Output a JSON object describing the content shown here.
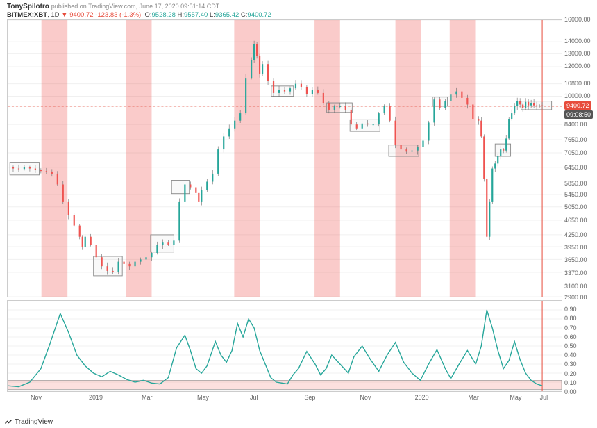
{
  "header": {
    "author": "TonySpilotro",
    "publish_text": "published on TradingView.com, June 17, 2020 09:51:14 CDT"
  },
  "ohlc": {
    "symbol": "BITMEX:XBT",
    "timeframe": "1D",
    "last": "9400.72",
    "change": "-123.83",
    "change_pct": "(-1.3%)",
    "o_label": "O:",
    "o": "9528.28",
    "h_label": "H:",
    "h": "9557.40",
    "l_label": "L:",
    "l": "9365.42",
    "c_label": "C:",
    "c": "9400.72"
  },
  "main_chart": {
    "type": "candlestick",
    "ylim": [
      2900,
      16000
    ],
    "yticks": [
      16000,
      14000,
      13000,
      12000,
      10800,
      10000,
      9400.72,
      8400,
      7650,
      7050,
      6450,
      5850,
      5450,
      5050,
      4650,
      4250,
      3950,
      3650,
      3370,
      3100,
      2900
    ],
    "ytick_labels": [
      "16000.00",
      "14000.00",
      "13000.00",
      "12000.00",
      "10800.00",
      "10000.00",
      "9400.72",
      "8400.00",
      "7650.00",
      "7050.00",
      "6450.00",
      "5850.00",
      "5450.00",
      "5050.00",
      "4650.00",
      "4250.00",
      "3950.00",
      "3650.00",
      "3370.00",
      "3100.00",
      "2900.00"
    ],
    "price_line": 9400.72,
    "countdown": "09:08:50",
    "vertical_cursor_x": 0.965,
    "highlight_bands_x": [
      [
        0.061,
        0.108
      ],
      [
        0.214,
        0.26
      ],
      [
        0.409,
        0.455
      ],
      [
        0.554,
        0.6
      ],
      [
        0.7,
        0.746
      ],
      [
        0.798,
        0.844
      ]
    ],
    "boxes": [
      {
        "x": [
          0.004,
          0.057
        ],
        "y": [
          6150,
          6650
        ]
      },
      {
        "x": [
          0.155,
          0.207
        ],
        "y": [
          3300,
          3720
        ]
      },
      {
        "x": [
          0.258,
          0.3
        ],
        "y": [
          3820,
          4250
        ]
      },
      {
        "x": [
          0.296,
          0.328
        ],
        "y": [
          5480,
          5950
        ]
      },
      {
        "x": [
          0.476,
          0.516
        ],
        "y": [
          10000,
          10650
        ]
      },
      {
        "x": [
          0.576,
          0.622
        ],
        "y": [
          9050,
          9600
        ]
      },
      {
        "x": [
          0.618,
          0.672
        ],
        "y": [
          8050,
          8650
        ]
      },
      {
        "x": [
          0.688,
          0.742
        ],
        "y": [
          6900,
          7400
        ]
      },
      {
        "x": [
          0.767,
          0.794
        ],
        "y": [
          9400,
          9950
        ]
      },
      {
        "x": [
          0.88,
          0.908
        ],
        "y": [
          6900,
          7450
        ]
      },
      {
        "x": [
          0.927,
          0.982
        ],
        "y": [
          9200,
          9700
        ]
      }
    ],
    "price_series": [
      [
        0.0,
        6450
      ],
      [
        0.01,
        6400
      ],
      [
        0.02,
        6380
      ],
      [
        0.03,
        6450
      ],
      [
        0.04,
        6400
      ],
      [
        0.05,
        6350
      ],
      [
        0.06,
        6300
      ],
      [
        0.07,
        6280
      ],
      [
        0.08,
        6200
      ],
      [
        0.09,
        5800
      ],
      [
        0.1,
        5200
      ],
      [
        0.11,
        4800
      ],
      [
        0.12,
        4500
      ],
      [
        0.13,
        4200
      ],
      [
        0.135,
        3950
      ],
      [
        0.14,
        4200
      ],
      [
        0.15,
        4000
      ],
      [
        0.16,
        3700
      ],
      [
        0.17,
        3500
      ],
      [
        0.18,
        3400
      ],
      [
        0.19,
        3380
      ],
      [
        0.2,
        3600
      ],
      [
        0.21,
        3550
      ],
      [
        0.22,
        3500
      ],
      [
        0.23,
        3600
      ],
      [
        0.24,
        3650
      ],
      [
        0.25,
        3700
      ],
      [
        0.26,
        3800
      ],
      [
        0.27,
        4000
      ],
      [
        0.28,
        4050
      ],
      [
        0.29,
        4000
      ],
      [
        0.3,
        4100
      ],
      [
        0.31,
        5200
      ],
      [
        0.32,
        5800
      ],
      [
        0.33,
        5700
      ],
      [
        0.34,
        5500
      ],
      [
        0.345,
        5200
      ],
      [
        0.35,
        5600
      ],
      [
        0.36,
        5900
      ],
      [
        0.37,
        6200
      ],
      [
        0.38,
        7200
      ],
      [
        0.39,
        7800
      ],
      [
        0.4,
        8200
      ],
      [
        0.41,
        8600
      ],
      [
        0.42,
        9000
      ],
      [
        0.43,
        11200
      ],
      [
        0.44,
        12500
      ],
      [
        0.445,
        13800
      ],
      [
        0.45,
        12800
      ],
      [
        0.455,
        11500
      ],
      [
        0.46,
        12200
      ],
      [
        0.47,
        11000
      ],
      [
        0.48,
        10200
      ],
      [
        0.49,
        10400
      ],
      [
        0.5,
        10300
      ],
      [
        0.51,
        10500
      ],
      [
        0.52,
        10800
      ],
      [
        0.53,
        10600
      ],
      [
        0.54,
        10150
      ],
      [
        0.55,
        10400
      ],
      [
        0.56,
        10200
      ],
      [
        0.57,
        9600
      ],
      [
        0.58,
        9200
      ],
      [
        0.59,
        9400
      ],
      [
        0.6,
        9400
      ],
      [
        0.61,
        9200
      ],
      [
        0.62,
        8400
      ],
      [
        0.63,
        8200
      ],
      [
        0.64,
        8450
      ],
      [
        0.65,
        8400
      ],
      [
        0.66,
        8400
      ],
      [
        0.67,
        9000
      ],
      [
        0.68,
        9400
      ],
      [
        0.69,
        8600
      ],
      [
        0.7,
        7400
      ],
      [
        0.71,
        7200
      ],
      [
        0.72,
        7100
      ],
      [
        0.73,
        7150
      ],
      [
        0.74,
        7300
      ],
      [
        0.75,
        7600
      ],
      [
        0.76,
        8500
      ],
      [
        0.77,
        9800
      ],
      [
        0.78,
        9300
      ],
      [
        0.79,
        9700
      ],
      [
        0.8,
        10100
      ],
      [
        0.81,
        10300
      ],
      [
        0.82,
        9900
      ],
      [
        0.83,
        9500
      ],
      [
        0.84,
        8700
      ],
      [
        0.85,
        8600
      ],
      [
        0.855,
        7800
      ],
      [
        0.86,
        6000
      ],
      [
        0.865,
        4200
      ],
      [
        0.87,
        5200
      ],
      [
        0.875,
        6400
      ],
      [
        0.88,
        6600
      ],
      [
        0.885,
        6900
      ],
      [
        0.89,
        7200
      ],
      [
        0.895,
        7150
      ],
      [
        0.9,
        7700
      ],
      [
        0.905,
        8700
      ],
      [
        0.91,
        9000
      ],
      [
        0.915,
        9400
      ],
      [
        0.92,
        9700
      ],
      [
        0.925,
        9500
      ],
      [
        0.93,
        9300
      ],
      [
        0.935,
        9650
      ],
      [
        0.94,
        9450
      ],
      [
        0.945,
        9600
      ],
      [
        0.95,
        9450
      ],
      [
        0.955,
        9400
      ],
      [
        0.96,
        9450
      ],
      [
        0.965,
        9400
      ]
    ],
    "colors": {
      "up": "#26a69a",
      "down": "#ef5350",
      "wick": "#666666",
      "background": "#ffffff",
      "grid": "#f0f0f0"
    }
  },
  "indicator_chart": {
    "type": "line",
    "ylim": [
      0.0,
      1.0
    ],
    "yticks": [
      0.9,
      0.8,
      0.7,
      0.6,
      0.5,
      0.4,
      0.3,
      0.2,
      0.1,
      0.0
    ],
    "ytick_labels": [
      "0.90",
      "0.80",
      "0.70",
      "0.60",
      "0.50",
      "0.40",
      "0.30",
      "0.20",
      "0.10",
      "0.00"
    ],
    "threshold_band": [
      0.02,
      0.12
    ],
    "series": [
      [
        0.0,
        0.06
      ],
      [
        0.02,
        0.05
      ],
      [
        0.04,
        0.1
      ],
      [
        0.06,
        0.25
      ],
      [
        0.075,
        0.5
      ],
      [
        0.095,
        0.86
      ],
      [
        0.11,
        0.65
      ],
      [
        0.125,
        0.4
      ],
      [
        0.14,
        0.28
      ],
      [
        0.155,
        0.2
      ],
      [
        0.17,
        0.16
      ],
      [
        0.185,
        0.22
      ],
      [
        0.2,
        0.18
      ],
      [
        0.215,
        0.13
      ],
      [
        0.23,
        0.1
      ],
      [
        0.245,
        0.12
      ],
      [
        0.26,
        0.09
      ],
      [
        0.275,
        0.08
      ],
      [
        0.29,
        0.15
      ],
      [
        0.305,
        0.48
      ],
      [
        0.32,
        0.62
      ],
      [
        0.33,
        0.45
      ],
      [
        0.34,
        0.25
      ],
      [
        0.35,
        0.2
      ],
      [
        0.36,
        0.28
      ],
      [
        0.375,
        0.55
      ],
      [
        0.385,
        0.4
      ],
      [
        0.395,
        0.32
      ],
      [
        0.405,
        0.45
      ],
      [
        0.415,
        0.75
      ],
      [
        0.425,
        0.6
      ],
      [
        0.435,
        0.8
      ],
      [
        0.445,
        0.7
      ],
      [
        0.455,
        0.45
      ],
      [
        0.465,
        0.3
      ],
      [
        0.475,
        0.15
      ],
      [
        0.485,
        0.1
      ],
      [
        0.495,
        0.09
      ],
      [
        0.505,
        0.08
      ],
      [
        0.515,
        0.18
      ],
      [
        0.525,
        0.25
      ],
      [
        0.54,
        0.44
      ],
      [
        0.555,
        0.3
      ],
      [
        0.565,
        0.18
      ],
      [
        0.575,
        0.25
      ],
      [
        0.585,
        0.4
      ],
      [
        0.6,
        0.3
      ],
      [
        0.615,
        0.2
      ],
      [
        0.625,
        0.38
      ],
      [
        0.64,
        0.5
      ],
      [
        0.655,
        0.35
      ],
      [
        0.67,
        0.22
      ],
      [
        0.685,
        0.4
      ],
      [
        0.7,
        0.54
      ],
      [
        0.715,
        0.32
      ],
      [
        0.73,
        0.2
      ],
      [
        0.745,
        0.12
      ],
      [
        0.76,
        0.3
      ],
      [
        0.775,
        0.46
      ],
      [
        0.79,
        0.25
      ],
      [
        0.8,
        0.14
      ],
      [
        0.815,
        0.3
      ],
      [
        0.83,
        0.45
      ],
      [
        0.845,
        0.3
      ],
      [
        0.855,
        0.5
      ],
      [
        0.865,
        0.9
      ],
      [
        0.875,
        0.7
      ],
      [
        0.885,
        0.45
      ],
      [
        0.895,
        0.25
      ],
      [
        0.905,
        0.34
      ],
      [
        0.915,
        0.55
      ],
      [
        0.925,
        0.35
      ],
      [
        0.935,
        0.2
      ],
      [
        0.945,
        0.12
      ],
      [
        0.955,
        0.08
      ],
      [
        0.965,
        0.06
      ]
    ],
    "color": "#26a69a",
    "threshold_color": "rgba(239,83,80,0.18)"
  },
  "xaxis": {
    "labels": [
      {
        "x": 0.055,
        "text": "Nov"
      },
      {
        "x": 0.16,
        "text": "2019"
      },
      {
        "x": 0.255,
        "text": "Mar"
      },
      {
        "x": 0.355,
        "text": "May"
      },
      {
        "x": 0.45,
        "text": "Jul"
      },
      {
        "x": 0.548,
        "text": "Sep"
      },
      {
        "x": 0.648,
        "text": "Nov"
      },
      {
        "x": 0.747,
        "text": "2020"
      },
      {
        "x": 0.843,
        "text": "Mar"
      },
      {
        "x": 0.918,
        "text": "May"
      },
      {
        "x": 0.972,
        "text": "Jul"
      }
    ]
  },
  "footer": {
    "logo_text": "TradingView"
  }
}
